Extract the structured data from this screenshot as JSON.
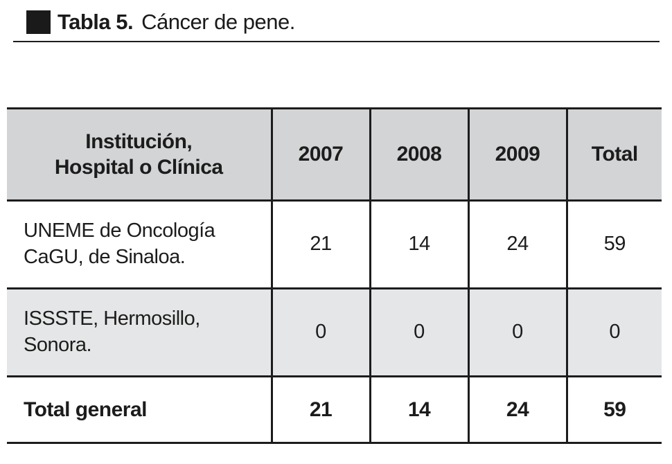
{
  "title": {
    "label": "Tabla 5.",
    "caption": "Cáncer de pene."
  },
  "table": {
    "columns": [
      "Institución,\nHospital o Clínica",
      "2007",
      "2008",
      "2009",
      "Total"
    ],
    "rows": [
      {
        "label": "UNEME de Oncología\nCaGU, de Sinaloa.",
        "values": [
          "21",
          "14",
          "24",
          "59"
        ]
      },
      {
        "label": "ISSSTE, Hermosillo,\nSonora.",
        "values": [
          "0",
          "0",
          "0",
          "0"
        ]
      }
    ],
    "total_row": {
      "label": "Total general",
      "values": [
        "21",
        "14",
        "24",
        "59"
      ]
    }
  },
  "colors": {
    "ink": "#1c1c1c",
    "header_background": "#d3d4d5",
    "shaded_row_background": "#e5e6e7",
    "page_background": "#ffffff"
  },
  "chart_data": {
    "type": "table",
    "title": "Tabla 5. Cáncer de pene.",
    "categories": [
      "2007",
      "2008",
      "2009",
      "Total"
    ],
    "series": [
      {
        "name": "UNEME de Oncología CaGU, de Sinaloa.",
        "values": [
          21,
          14,
          24,
          59
        ]
      },
      {
        "name": "ISSSTE, Hermosillo, Sonora.",
        "values": [
          0,
          0,
          0,
          0
        ]
      },
      {
        "name": "Total general",
        "values": [
          21,
          14,
          24,
          59
        ]
      }
    ]
  }
}
